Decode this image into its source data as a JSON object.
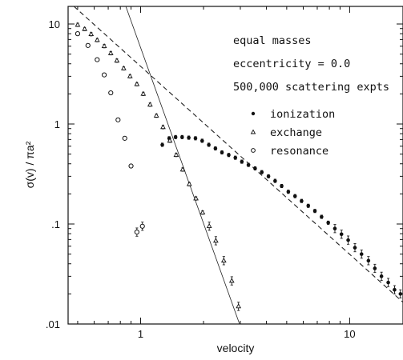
{
  "chart_data": {
    "type": "scatter",
    "xlabel": "velocity",
    "ylabel": "σ(v) / πa²",
    "xscale": "log",
    "yscale": "log",
    "xlim": [
      0.45,
      18
    ],
    "ylim": [
      0.01,
      15
    ],
    "x_ticks": [
      {
        "v": 1,
        "label": "1"
      },
      {
        "v": 10,
        "label": "10"
      }
    ],
    "y_ticks": [
      {
        "v": 0.01,
        "label": ".01"
      },
      {
        "v": 0.1,
        "label": ".1"
      },
      {
        "v": 1,
        "label": "1"
      },
      {
        "v": 10,
        "label": "10"
      }
    ],
    "grid": false,
    "legend_position": "right, below annotations",
    "annotations": [
      "equal masses",
      "eccentricity = 0.0",
      "500,000 scattering expts"
    ],
    "series": [
      {
        "name": "ionization",
        "marker": "filled-circle",
        "x": [
          1.27,
          1.37,
          1.47,
          1.58,
          1.7,
          1.83,
          1.97,
          2.12,
          2.28,
          2.45,
          2.64,
          2.84,
          3.05,
          3.28,
          3.53,
          3.8,
          4.09,
          4.4,
          4.73,
          5.09,
          5.48,
          5.89,
          6.34,
          6.82,
          7.34,
          7.9,
          8.5,
          9.14,
          9.84,
          10.6,
          11.4,
          12.3,
          13.2,
          14.2,
          15.3,
          16.4,
          17.5
        ],
        "y": [
          0.62,
          0.72,
          0.74,
          0.74,
          0.73,
          0.72,
          0.68,
          0.62,
          0.57,
          0.52,
          0.49,
          0.46,
          0.42,
          0.39,
          0.36,
          0.33,
          0.3,
          0.27,
          0.24,
          0.21,
          0.19,
          0.17,
          0.152,
          0.135,
          0.118,
          0.103,
          0.09,
          0.079,
          0.069,
          0.058,
          0.05,
          0.043,
          0.036,
          0.03,
          0.026,
          0.022,
          0.02
        ]
      },
      {
        "name": "exchange",
        "marker": "triangle",
        "x": [
          0.5,
          0.54,
          0.58,
          0.62,
          0.67,
          0.72,
          0.77,
          0.83,
          0.89,
          0.96,
          1.03,
          1.11,
          1.19,
          1.28,
          1.38,
          1.48,
          1.59,
          1.71,
          1.84,
          1.98,
          2.13,
          2.29,
          2.5,
          2.73,
          2.94
        ],
        "y": [
          9.8,
          8.9,
          7.9,
          6.9,
          6.0,
          5.1,
          4.3,
          3.6,
          3.0,
          2.5,
          2.0,
          1.56,
          1.21,
          0.93,
          0.68,
          0.49,
          0.35,
          0.25,
          0.18,
          0.13,
          0.095,
          0.068,
          0.043,
          0.027,
          0.015
        ]
      },
      {
        "name": "resonance",
        "marker": "open-circle",
        "x": [
          0.5,
          0.56,
          0.62,
          0.67,
          0.72,
          0.78,
          0.84,
          0.9,
          0.96,
          1.02
        ],
        "y": [
          8.0,
          6.1,
          4.4,
          3.1,
          2.05,
          1.1,
          0.72,
          0.38,
          0.083,
          0.095
        ]
      }
    ],
    "reference_lines": [
      {
        "style": "dashed",
        "x1": 0.48,
        "y1": 15,
        "x2": 18,
        "y2": 0.0165
      },
      {
        "style": "solid",
        "x1": 0.85,
        "y1": 15,
        "x2": 3.0,
        "y2": 0.0095
      }
    ]
  }
}
